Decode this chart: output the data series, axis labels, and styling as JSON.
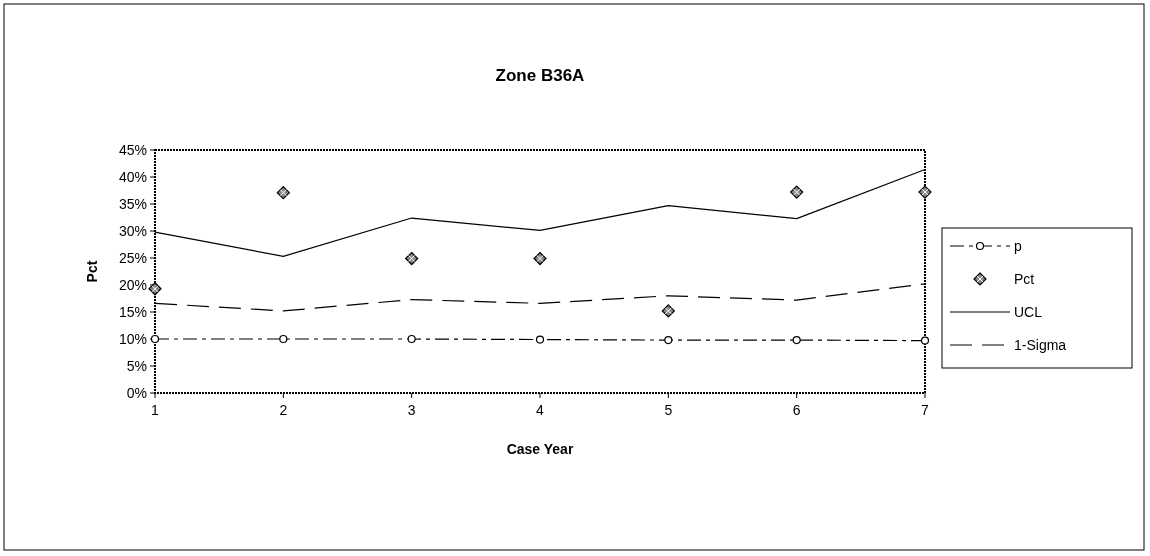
{
  "chart_data": {
    "type": "line",
    "title": "Zone B36A",
    "xlabel": "Case Year",
    "ylabel": "Pct",
    "x": [
      1,
      2,
      3,
      4,
      5,
      6,
      7
    ],
    "xlim": [
      1,
      7
    ],
    "xticks": [
      1,
      2,
      3,
      4,
      5,
      6,
      7
    ],
    "ylim": [
      0,
      45
    ],
    "yticks": [
      {
        "value": 0,
        "label": "0%"
      },
      {
        "value": 5,
        "label": "5%"
      },
      {
        "value": 10,
        "label": "10%"
      },
      {
        "value": 15,
        "label": "15%"
      },
      {
        "value": 20,
        "label": "20%"
      },
      {
        "value": 25,
        "label": "25%"
      },
      {
        "value": 30,
        "label": "30%"
      },
      {
        "value": 35,
        "label": "35%"
      },
      {
        "value": 40,
        "label": "40%"
      },
      {
        "value": 45,
        "label": "45%"
      }
    ],
    "grid": false,
    "legend": "right",
    "series": [
      {
        "name": "p",
        "color": "#000000",
        "line_style": "dashed",
        "marker": "circle",
        "values": [
          10,
          10,
          10,
          9.9,
          9.8,
          9.8,
          9.7
        ]
      },
      {
        "name": "Pct",
        "type": "scatter",
        "color": "#000000",
        "marker": "diamond",
        "values": [
          19.3,
          37.1,
          24.9,
          24.9,
          15.2,
          37.2,
          37.2
        ]
      },
      {
        "name": "UCL",
        "color": "#000000",
        "line_style": "solid",
        "marker": "none",
        "values": [
          29.8,
          25.3,
          32.4,
          30.1,
          34.7,
          32.3,
          41.4
        ]
      },
      {
        "name": "1-Sigma",
        "color": "#000000",
        "line_style": "dashed",
        "marker": "none",
        "values": [
          16.6,
          15.2,
          17.3,
          16.6,
          18.0,
          17.2,
          20.2
        ]
      }
    ]
  }
}
